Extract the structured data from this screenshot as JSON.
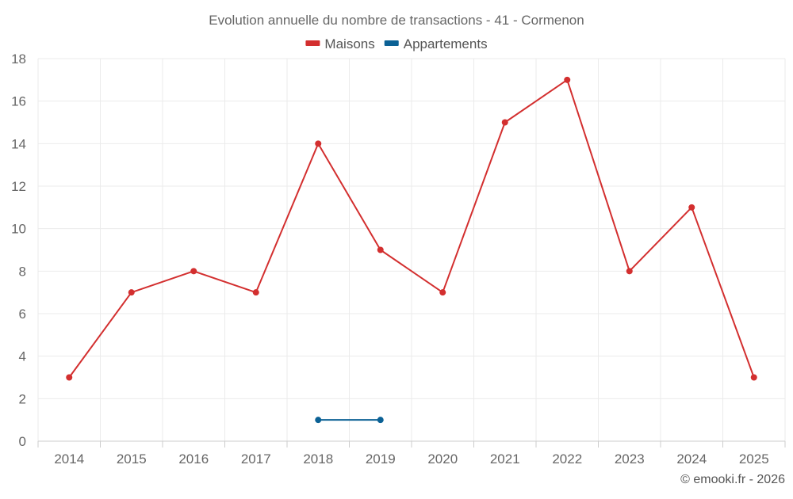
{
  "chart_data": {
    "type": "line",
    "title": "Evolution annuelle du nombre de transactions - 41 - Cormenon",
    "categories": [
      "2014",
      "2015",
      "2016",
      "2017",
      "2018",
      "2019",
      "2020",
      "2021",
      "2022",
      "2023",
      "2024",
      "2025"
    ],
    "series": [
      {
        "name": "Maisons",
        "color": "#d32f2f",
        "values": [
          3,
          7,
          8,
          7,
          14,
          9,
          7,
          15,
          17,
          8,
          11,
          3
        ]
      },
      {
        "name": "Appartements",
        "color": "#0b6195",
        "values": [
          null,
          null,
          null,
          null,
          1,
          1,
          null,
          null,
          null,
          null,
          null,
          null
        ]
      }
    ],
    "ylim": [
      0,
      18
    ],
    "yticks": [
      0,
      2,
      4,
      6,
      8,
      10,
      12,
      14,
      16,
      18
    ],
    "xlabel": "",
    "ylabel": "",
    "grid": true,
    "legend_position": "top-center"
  },
  "credit": "© emooki.fr - 2026"
}
